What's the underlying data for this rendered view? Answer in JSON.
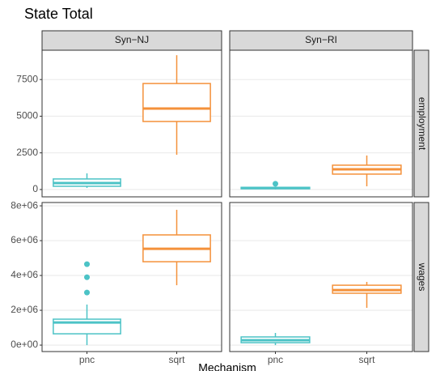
{
  "chart_data": {
    "type": "box",
    "title": "State Total",
    "xlabel": "Mechanism",
    "columns": [
      "Syn−NJ",
      "Syn−RI"
    ],
    "categories": [
      "pnc",
      "sqrt"
    ],
    "colors": [
      "#4cc3c6",
      "#f4913a"
    ],
    "grid": true,
    "rows": [
      {
        "label": "employment",
        "ylim": [
          -500,
          9500
        ],
        "yticks": [
          0,
          2500,
          5000,
          7500
        ],
        "panels": [
          {
            "boxes": [
              {
                "min": 110,
                "q1": 220,
                "median": 440,
                "q3": 720,
                "max": 1100,
                "outliers": []
              },
              {
                "min": 2370,
                "q1": 4640,
                "median": 5520,
                "q3": 7230,
                "max": 9160,
                "outliers": []
              }
            ]
          },
          {
            "boxes": [
              {
                "min": 0,
                "q1": 50,
                "median": 100,
                "q3": 150,
                "max": 200,
                "outliers": [
                  390
                ]
              },
              {
                "min": 220,
                "q1": 1050,
                "median": 1380,
                "q3": 1660,
                "max": 2320,
                "outliers": []
              }
            ]
          }
        ]
      },
      {
        "label": "wages",
        "ylim": [
          -370000,
          8190000
        ],
        "yticks": [
          {
            "value": 0,
            "label": "0e+00"
          },
          {
            "value": 2000000,
            "label": "2e+06"
          },
          {
            "value": 4000000,
            "label": "4e+06"
          },
          {
            "value": 6000000,
            "label": "6e+06"
          },
          {
            "value": 8000000,
            "label": "8e+06"
          }
        ],
        "panels": [
          {
            "boxes": [
              {
                "min": 0,
                "q1": 650000,
                "median": 1300000,
                "q3": 1490000,
                "max": 2330000,
                "outliers": [
                  3020000,
                  3900000,
                  4650000
                ]
              },
              {
                "min": 3440000,
                "q1": 4790000,
                "median": 5530000,
                "q3": 6330000,
                "max": 7770000,
                "outliers": []
              }
            ]
          },
          {
            "boxes": [
              {
                "min": 0,
                "q1": 140000,
                "median": 280000,
                "q3": 470000,
                "max": 700000,
                "outliers": []
              },
              {
                "min": 2140000,
                "q1": 2980000,
                "median": 3160000,
                "q3": 3440000,
                "max": 3630000,
                "outliers": []
              }
            ]
          }
        ]
      }
    ]
  }
}
